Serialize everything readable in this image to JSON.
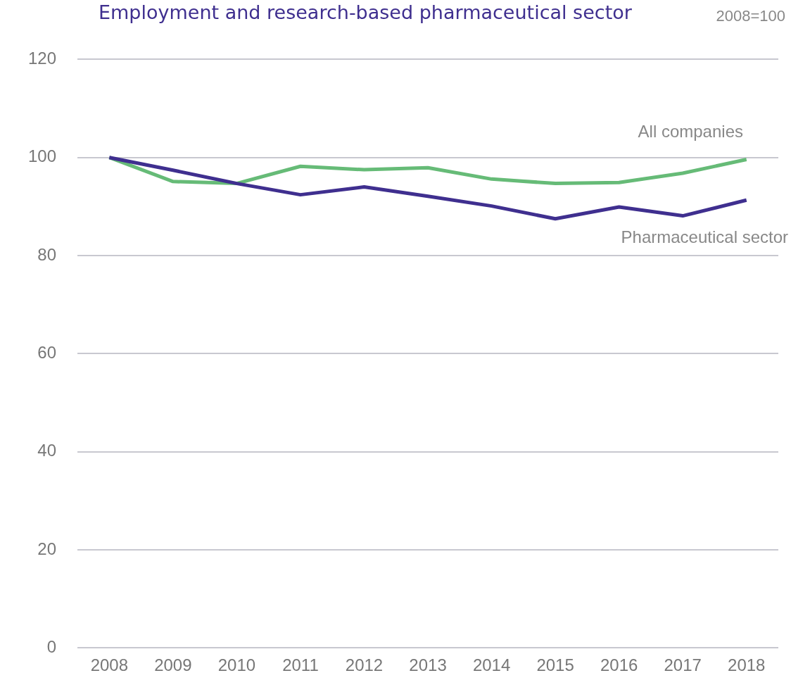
{
  "chart_data": {
    "type": "line",
    "title": "Employment and research-based pharmaceutical sector",
    "subtitle": "2008=100",
    "categories": [
      "2008",
      "2009",
      "2010",
      "2011",
      "2012",
      "2013",
      "2014",
      "2015",
      "2016",
      "2017",
      "2018"
    ],
    "series": [
      {
        "name": "Pharmaceutical sector",
        "color": "#3f2f8f",
        "values": [
          100,
          97.4,
          94.7,
          92.4,
          94.0,
          92.1,
          90.1,
          87.5,
          89.9,
          88.1,
          91.3
        ]
      },
      {
        "name": "All companies",
        "color": "#66bb77",
        "values": [
          100,
          95.1,
          94.7,
          98.2,
          97.5,
          97.9,
          95.6,
          94.7,
          94.9,
          96.8,
          99.6
        ]
      }
    ],
    "ylim": [
      0,
      120
    ],
    "yticks": [
      0,
      20,
      40,
      60,
      80,
      100,
      120
    ],
    "grid": "y",
    "legend": false,
    "marker": "none",
    "line_style": "solid"
  }
}
